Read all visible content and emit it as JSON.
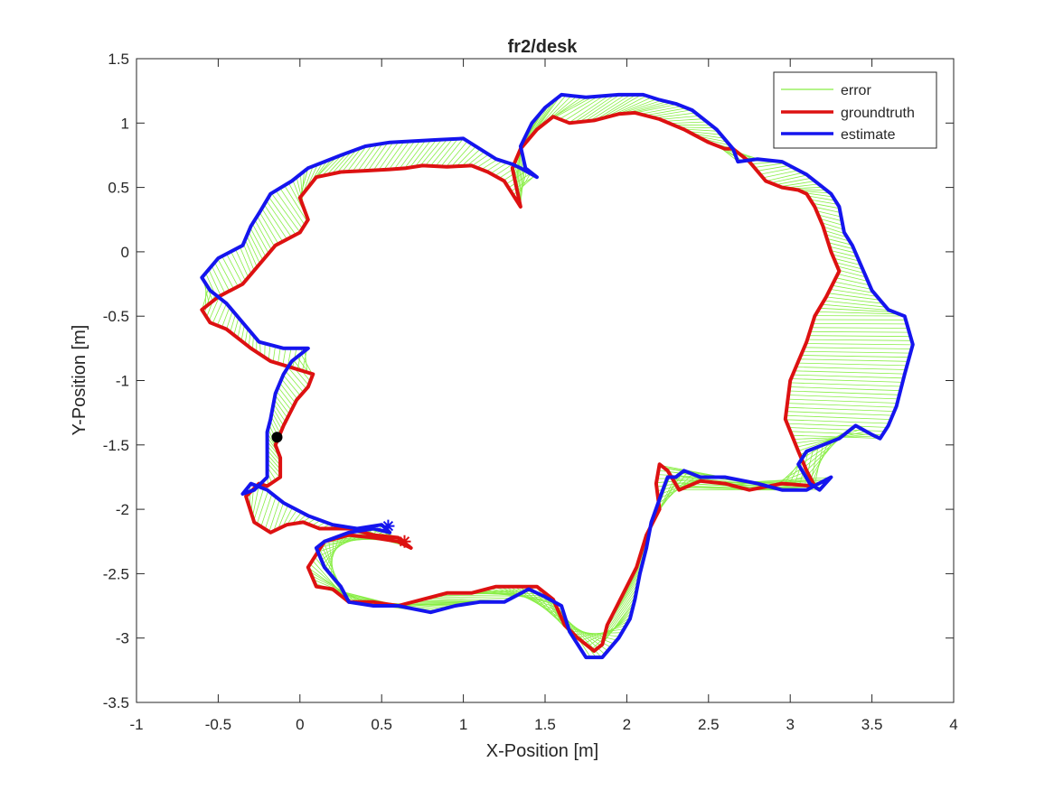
{
  "chart_data": {
    "type": "line",
    "title": "fr2/desk",
    "xlabel": "X-Position [m]",
    "ylabel": "Y-Position [m]",
    "xlim": [
      -1,
      4
    ],
    "ylim": [
      -3.5,
      1.5
    ],
    "xticks": [
      -1,
      -0.5,
      0,
      0.5,
      1,
      1.5,
      2,
      2.5,
      3,
      3.5,
      4
    ],
    "yticks": [
      -3.5,
      -3,
      -2.5,
      -2,
      -1.5,
      -1,
      -0.5,
      0,
      0.5,
      1,
      1.5
    ],
    "xtick_labels": [
      "-1",
      "-0.5",
      "0",
      "0.5",
      "1",
      "1.5",
      "2",
      "2.5",
      "3",
      "3.5",
      "4"
    ],
    "ytick_labels": [
      "-3.5",
      "-3",
      "-2.5",
      "-2",
      "-1.5",
      "-1",
      "-0.5",
      "0",
      "0.5",
      "1",
      "1.5"
    ],
    "grid": false,
    "legend_position": "top-right",
    "colors": {
      "error": "#88ee44",
      "groundtruth": "#dd1111",
      "estimate": "#1515ee",
      "start": "#000000"
    },
    "series": [
      {
        "name": "error",
        "type": "segments"
      },
      {
        "name": "groundtruth",
        "x": [
          0.0,
          0.1,
          0.25,
          0.4,
          0.55,
          0.65,
          0.75,
          0.9,
          1.05,
          1.15,
          1.25,
          1.3,
          1.35,
          1.3,
          1.35,
          1.45,
          1.55,
          1.65,
          1.8,
          1.95,
          2.05,
          2.2,
          2.35,
          2.5,
          2.6,
          2.65,
          2.75,
          2.85,
          2.95,
          3.05,
          3.1,
          3.15,
          3.2,
          3.25,
          3.3,
          3.22,
          3.15,
          3.1,
          3.05,
          3.0,
          2.97,
          3.05,
          3.1,
          3.15,
          2.95,
          2.75,
          2.6,
          2.45,
          2.32,
          2.25,
          2.2,
          2.18,
          2.2,
          2.12,
          2.06,
          2.0,
          1.94,
          1.88,
          1.85,
          1.8,
          1.7,
          1.62,
          1.55,
          1.45,
          1.35,
          1.2,
          1.05,
          0.9,
          0.75,
          0.6,
          0.45,
          0.3,
          0.2,
          0.1,
          0.05,
          0.15,
          0.3,
          0.45,
          0.6,
          0.68,
          0.6,
          0.45,
          0.3,
          0.2,
          0.12,
          0.02,
          -0.08,
          -0.18,
          -0.28,
          -0.33,
          -0.25,
          -0.2,
          -0.12,
          -0.12,
          -0.15,
          -0.1,
          -0.02,
          0.05,
          0.08,
          -0.05,
          -0.18,
          -0.3,
          -0.45,
          -0.55,
          -0.6,
          -0.5,
          -0.35,
          -0.25,
          -0.15,
          0.0,
          0.05,
          0.0
        ],
        "y": [
          0.42,
          0.58,
          0.62,
          0.63,
          0.64,
          0.65,
          0.67,
          0.66,
          0.67,
          0.62,
          0.55,
          0.45,
          0.35,
          0.65,
          0.8,
          0.95,
          1.05,
          1.0,
          1.02,
          1.07,
          1.08,
          1.03,
          0.95,
          0.85,
          0.8,
          0.8,
          0.7,
          0.55,
          0.5,
          0.48,
          0.45,
          0.35,
          0.2,
          0.0,
          -0.15,
          -0.35,
          -0.5,
          -0.7,
          -0.85,
          -1.0,
          -1.3,
          -1.55,
          -1.7,
          -1.82,
          -1.8,
          -1.85,
          -1.8,
          -1.78,
          -1.85,
          -1.7,
          -1.65,
          -1.8,
          -2.0,
          -2.2,
          -2.45,
          -2.6,
          -2.75,
          -2.9,
          -3.05,
          -3.1,
          -3.0,
          -2.9,
          -2.7,
          -2.6,
          -2.6,
          -2.6,
          -2.65,
          -2.65,
          -2.7,
          -2.75,
          -2.72,
          -2.72,
          -2.62,
          -2.6,
          -2.45,
          -2.25,
          -2.2,
          -2.22,
          -2.25,
          -2.3,
          -2.22,
          -2.2,
          -2.15,
          -2.15,
          -2.15,
          -2.1,
          -2.12,
          -2.18,
          -2.1,
          -1.9,
          -1.8,
          -1.82,
          -1.75,
          -1.6,
          -1.5,
          -1.35,
          -1.15,
          -1.05,
          -0.95,
          -0.9,
          -0.85,
          -0.75,
          -0.6,
          -0.55,
          -0.45,
          -0.35,
          -0.25,
          -0.1,
          0.05,
          0.15,
          0.25,
          0.42
        ]
      },
      {
        "name": "estimate",
        "x": [
          0.05,
          0.15,
          0.25,
          0.4,
          0.55,
          0.7,
          0.85,
          1.0,
          1.1,
          1.2,
          1.3,
          1.35,
          1.45,
          1.38,
          1.35,
          1.42,
          1.5,
          1.6,
          1.75,
          1.95,
          2.1,
          2.2,
          2.3,
          2.4,
          2.55,
          2.65,
          2.68,
          2.8,
          2.95,
          3.1,
          3.2,
          3.25,
          3.3,
          3.33,
          3.38,
          3.5,
          3.6,
          3.7,
          3.75,
          3.7,
          3.65,
          3.6,
          3.55,
          3.5,
          3.4,
          3.3,
          3.2,
          3.1,
          3.05,
          3.12,
          3.18,
          3.25,
          3.1,
          2.95,
          2.8,
          2.6,
          2.45,
          2.35,
          2.3,
          2.25,
          2.22,
          2.15,
          2.12,
          2.08,
          2.05,
          2.02,
          1.95,
          1.85,
          1.75,
          1.65,
          1.6,
          1.5,
          1.4,
          1.25,
          1.1,
          0.95,
          0.8,
          0.6,
          0.45,
          0.3,
          0.25,
          0.15,
          0.1,
          0.15,
          0.3,
          0.45,
          0.55,
          0.5,
          0.35,
          0.2,
          0.05,
          -0.1,
          -0.2,
          -0.3,
          -0.35,
          -0.28,
          -0.2,
          -0.2,
          -0.2,
          -0.18,
          -0.15,
          -0.1,
          -0.05,
          0.05,
          -0.1,
          -0.25,
          -0.35,
          -0.45,
          -0.55,
          -0.6,
          -0.5,
          -0.35,
          -0.3,
          -0.25,
          -0.18,
          -0.05,
          0.05
        ],
        "y": [
          0.65,
          0.7,
          0.75,
          0.82,
          0.85,
          0.86,
          0.87,
          0.88,
          0.8,
          0.72,
          0.68,
          0.65,
          0.58,
          0.65,
          0.82,
          1.0,
          1.12,
          1.22,
          1.2,
          1.22,
          1.22,
          1.18,
          1.15,
          1.1,
          0.95,
          0.8,
          0.7,
          0.72,
          0.7,
          0.6,
          0.5,
          0.45,
          0.35,
          0.15,
          0.05,
          -0.3,
          -0.45,
          -0.5,
          -0.72,
          -0.95,
          -1.2,
          -1.35,
          -1.45,
          -1.42,
          -1.35,
          -1.45,
          -1.5,
          -1.55,
          -1.65,
          -1.8,
          -1.85,
          -1.75,
          -1.85,
          -1.85,
          -1.8,
          -1.75,
          -1.75,
          -1.7,
          -1.75,
          -1.75,
          -1.85,
          -2.1,
          -2.3,
          -2.5,
          -2.7,
          -2.85,
          -3.0,
          -3.15,
          -3.15,
          -2.95,
          -2.75,
          -2.68,
          -2.62,
          -2.72,
          -2.72,
          -2.75,
          -2.8,
          -2.75,
          -2.75,
          -2.72,
          -2.6,
          -2.45,
          -2.3,
          -2.25,
          -2.18,
          -2.15,
          -2.18,
          -2.12,
          -2.15,
          -2.12,
          -2.05,
          -1.95,
          -1.85,
          -1.8,
          -1.88,
          -1.85,
          -1.75,
          -1.55,
          -1.4,
          -1.3,
          -1.1,
          -0.95,
          -0.85,
          -0.75,
          -0.75,
          -0.7,
          -0.55,
          -0.4,
          -0.3,
          -0.2,
          -0.05,
          0.05,
          0.2,
          0.3,
          0.45,
          0.55,
          0.65
        ]
      }
    ],
    "markers": [
      {
        "name": "groundtruth-end",
        "x": 0.64,
        "y": -2.25,
        "symbol": "*",
        "color": "#dd1111"
      },
      {
        "name": "estimate-end",
        "x": 0.54,
        "y": -2.13,
        "symbol": "*",
        "color": "#1515ee"
      },
      {
        "name": "start-point",
        "x": -0.14,
        "y": -1.44,
        "symbol": "o",
        "color": "#000000"
      }
    ],
    "legend": [
      "error",
      "groundtruth",
      "estimate"
    ]
  }
}
